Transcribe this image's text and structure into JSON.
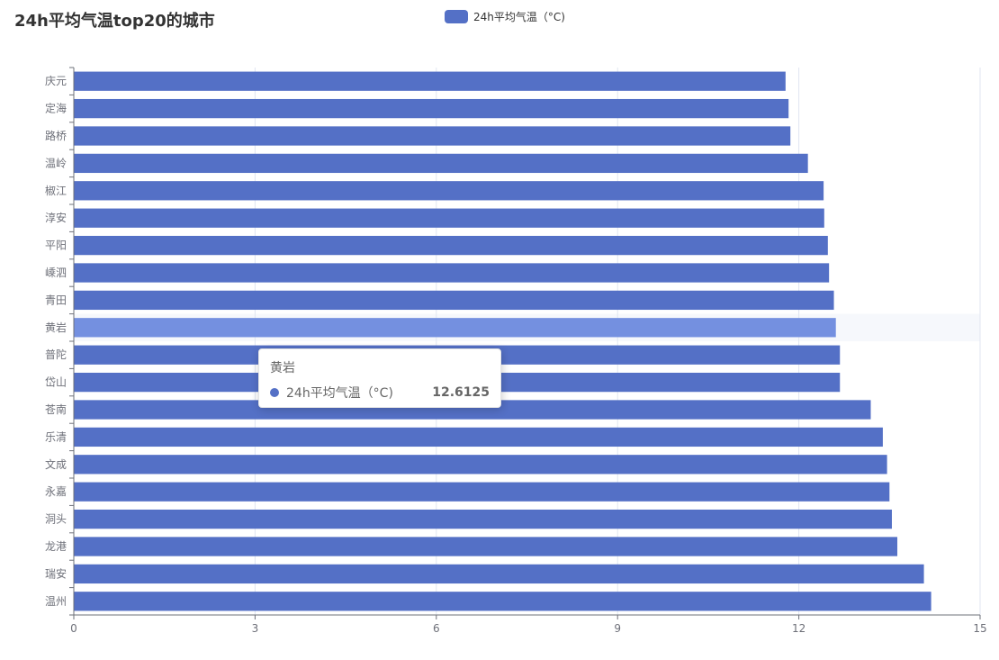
{
  "title": "24h平均气温top20的城市",
  "colors": {
    "bar": "#5470c6",
    "bar_highlight": "#7490e0",
    "axis": "#6e7079",
    "grid": "#e0e6f1",
    "highlight_band": "rgba(210,219,238,0.2)"
  },
  "tooltip": {
    "category": "黄岩",
    "series_name": "24h平均气温（°C)",
    "value": "12.6125"
  },
  "chart_data": {
    "type": "bar",
    "orientation": "horizontal",
    "title": "24h平均气温top20的城市",
    "categories": [
      "庆元",
      "定海",
      "路桥",
      "温岭",
      "椒江",
      "淳安",
      "平阳",
      "嵊泗",
      "青田",
      "黄岩",
      "普陀",
      "岱山",
      "苍南",
      "乐清",
      "文成",
      "永嘉",
      "洞头",
      "龙港",
      "瑞安",
      "温州"
    ],
    "series": [
      {
        "name": "24h平均气温（°C)",
        "values": [
          11.78,
          11.83,
          11.86,
          12.15,
          12.41,
          12.42,
          12.48,
          12.5,
          12.58,
          12.6125,
          12.68,
          12.68,
          13.19,
          13.39,
          13.46,
          13.5,
          13.54,
          13.63,
          14.07,
          14.19
        ]
      }
    ],
    "xlim": [
      0,
      15
    ],
    "xticks": [
      0,
      3,
      6,
      9,
      12,
      15
    ],
    "highlighted_category": "黄岩",
    "grid": "vertical",
    "legend": "top-center"
  }
}
